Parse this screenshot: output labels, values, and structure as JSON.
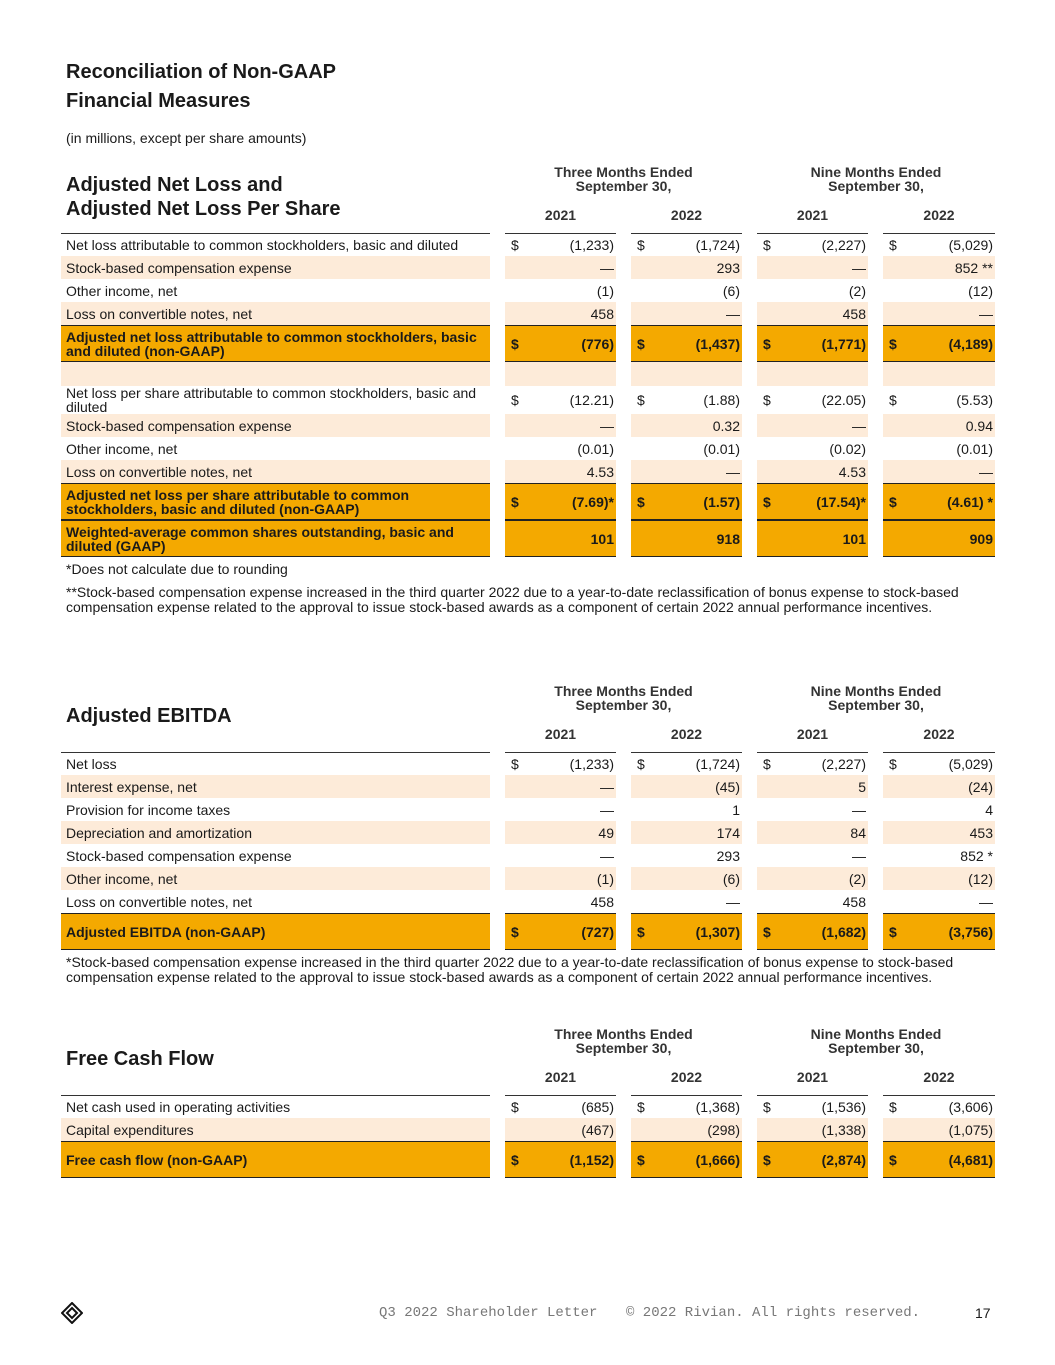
{
  "header": {
    "title_lines": [
      "Reconciliation of Non-GAAP",
      "Financial Measures"
    ],
    "subtitle": "(in millions, except per share amounts)"
  },
  "tables": [
    {
      "title_lines": [
        "Adjusted Net Loss and",
        "Adjusted Net Loss Per Share"
      ],
      "periods": [
        {
          "label": "Three Months Ended September 30,",
          "years": [
            "2021",
            "2022"
          ]
        },
        {
          "label": "Nine Months Ended September 30,",
          "years": [
            "2021",
            "2022"
          ]
        }
      ],
      "sections": [
        [
          {
            "label": "Net loss attributable to common stockholders, basic and diluted",
            "currency": "$",
            "values": [
              "(1,233)",
              "(1,724)",
              "(2,227)",
              "(5,029)"
            ]
          },
          {
            "label": "Stock-based compensation expense",
            "values": [
              "—",
              "293",
              "—",
              "852 **"
            ]
          },
          {
            "label": "Other income, net",
            "values": [
              "(1)",
              "(6)",
              "(2)",
              "(12)"
            ]
          },
          {
            "label": "Loss on convertible notes, net",
            "values": [
              "458",
              "—",
              "458",
              "—"
            ]
          },
          {
            "label": "Adjusted net loss attributable to common stockholders, basic and diluted (non-GAAP)",
            "currency": "$",
            "values": [
              "(776)",
              "(1,437)",
              "(1,771)",
              "(4,189)"
            ],
            "emphasis": true
          }
        ],
        [
          {
            "label": "Net loss per share attributable to common stockholders, basic and diluted",
            "currency": "$",
            "values": [
              "(12.21)",
              "(1.88)",
              "(22.05)",
              "(5.53)"
            ]
          },
          {
            "label": "Stock-based compensation expense",
            "values": [
              "—",
              "0.32",
              "—",
              "0.94"
            ]
          },
          {
            "label": "Other income, net",
            "values": [
              "(0.01)",
              "(0.01)",
              "(0.02)",
              "(0.01)"
            ]
          },
          {
            "label": "Loss on convertible notes, net",
            "values": [
              "4.53",
              "—",
              "4.53",
              "—"
            ]
          },
          {
            "label": "Adjusted net loss per share attributable to common stockholders, basic and diluted (non-GAAP)",
            "currency": "$",
            "values": [
              "(7.69)*",
              "(1.57)",
              "(17.54)*",
              "(4.61) *"
            ],
            "emphasis": true
          },
          {
            "label": "Weighted-average common shares outstanding, basic and diluted (GAAP)",
            "values": [
              "101",
              "918",
              "101",
              "909"
            ],
            "emphasis": true
          }
        ]
      ],
      "notes": [
        "*Does not calculate due to rounding",
        "**Stock-based compensation expense increased in the third quarter 2022 due to a year-to-date reclassification of bonus expense to stock-based compensation expense related to the approval to issue stock-based awards as a component of certain 2022 annual performance incentives."
      ]
    },
    {
      "title_lines": [
        "Adjusted EBITDA"
      ],
      "periods": [
        {
          "label": "Three Months Ended September 30,",
          "years": [
            "2021",
            "2022"
          ]
        },
        {
          "label": "Nine Months Ended September 30,",
          "years": [
            "2021",
            "2022"
          ]
        }
      ],
      "sections": [
        [
          {
            "label": "Net loss",
            "currency": "$",
            "values": [
              "(1,233)",
              "(1,724)",
              "(2,227)",
              "(5,029)"
            ]
          },
          {
            "label": "Interest expense, net",
            "values": [
              "—",
              "(45)",
              "5",
              "(24)"
            ]
          },
          {
            "label": "Provision for income taxes",
            "values": [
              "—",
              "1",
              "—",
              "4"
            ]
          },
          {
            "label": "Depreciation and amortization",
            "values": [
              "49",
              "174",
              "84",
              "453"
            ]
          },
          {
            "label": "Stock-based compensation expense",
            "values": [
              "—",
              "293",
              "—",
              "852 *"
            ]
          },
          {
            "label": "Other income, net",
            "values": [
              "(1)",
              "(6)",
              "(2)",
              "(12)"
            ]
          },
          {
            "label": "Loss on convertible notes, net",
            "values": [
              "458",
              "—",
              "458",
              "—"
            ]
          },
          {
            "label": "Adjusted EBITDA (non-GAAP)",
            "currency": "$",
            "values": [
              "(727)",
              "(1,307)",
              "(1,682)",
              "(3,756)"
            ],
            "emphasis": true
          }
        ]
      ],
      "notes": [
        "*Stock-based compensation expense increased in the third quarter 2022 due to a year-to-date reclassification of bonus expense to stock-based compensation expense related to the approval to issue stock-based awards as a component of certain 2022 annual performance incentives."
      ]
    },
    {
      "title_lines": [
        "Free Cash Flow"
      ],
      "periods": [
        {
          "label": "Three Months Ended September 30,",
          "years": [
            "2021",
            "2022"
          ]
        },
        {
          "label": "Nine Months Ended September 30,",
          "years": [
            "2021",
            "2022"
          ]
        }
      ],
      "sections": [
        [
          {
            "label": "Net cash used in operating activities",
            "currency": "$",
            "values": [
              "(685)",
              "(1,368)",
              "(1,536)",
              "(3,606)"
            ]
          },
          {
            "label": "Capital expenditures",
            "values": [
              "(467)",
              "(298)",
              "(1,338)",
              "(1,075)"
            ]
          },
          {
            "label": "Free cash flow (non-GAAP)",
            "currency": "$",
            "values": [
              "(1,152)",
              "(1,666)",
              "(2,874)",
              "(4,681)"
            ],
            "emphasis": true
          }
        ]
      ],
      "notes": []
    }
  ],
  "footer": {
    "document": "Q3 2022 Shareholder Letter",
    "copyright": "© 2022 Rivian. All rights reserved.",
    "page": "17"
  }
}
